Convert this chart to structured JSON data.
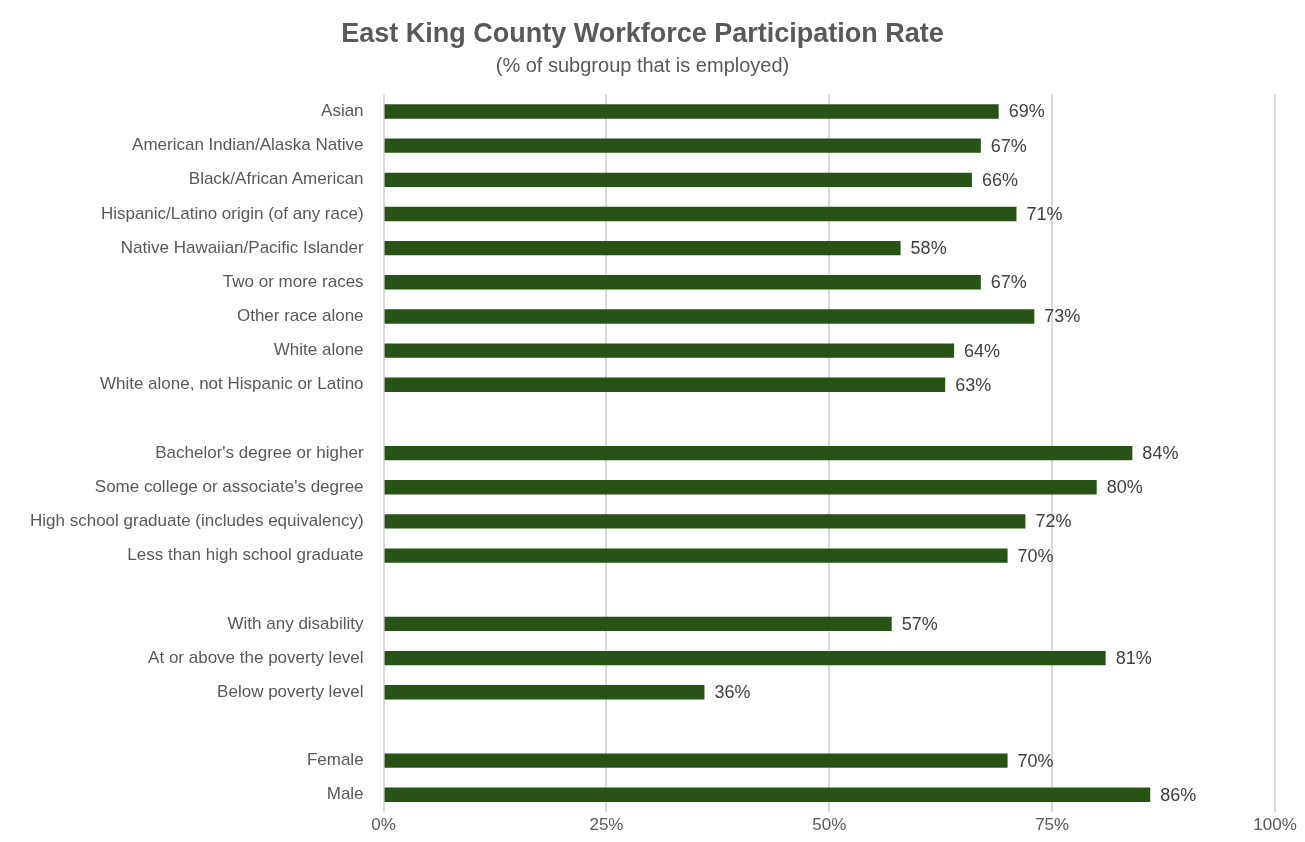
{
  "chart_data": {
    "type": "bar",
    "orientation": "horizontal",
    "title": "East King County Workforce Participation Rate",
    "subtitle": "(% of subgroup that is employed)",
    "categories": [
      "Asian",
      "American Indian/Alaska Native",
      "Black/African American",
      "Hispanic/Latino origin (of any race)",
      "Native Hawaiian/Pacific Islander",
      "Two or more races",
      "Other race alone",
      "White alone",
      "White alone, not Hispanic or Latino",
      null,
      "Bachelor's degree or higher",
      "Some college or associate's degree",
      "High school graduate (includes equivalency)",
      "Less than high school graduate",
      null,
      "With any disability",
      "At or above the poverty level",
      "Below poverty level",
      null,
      "Female",
      "Male"
    ],
    "values": [
      69,
      67,
      66,
      71,
      58,
      67,
      73,
      64,
      63,
      null,
      84,
      80,
      72,
      70,
      null,
      57,
      81,
      36,
      null,
      70,
      86
    ],
    "value_labels": [
      "69%",
      "67%",
      "66%",
      "71%",
      "58%",
      "67%",
      "73%",
      "64%",
      "63%",
      null,
      "84%",
      "80%",
      "72%",
      "70%",
      null,
      "57%",
      "81%",
      "36%",
      null,
      "70%",
      "86%"
    ],
    "color": "#275317",
    "xlim": [
      0,
      100
    ],
    "xticks": [
      {
        "value": 0,
        "label": "0%"
      },
      {
        "value": 25,
        "label": "25%"
      },
      {
        "value": 50,
        "label": "50%"
      },
      {
        "value": 75,
        "label": "75%"
      },
      {
        "value": 100,
        "label": "100%"
      }
    ],
    "grid": "x"
  }
}
